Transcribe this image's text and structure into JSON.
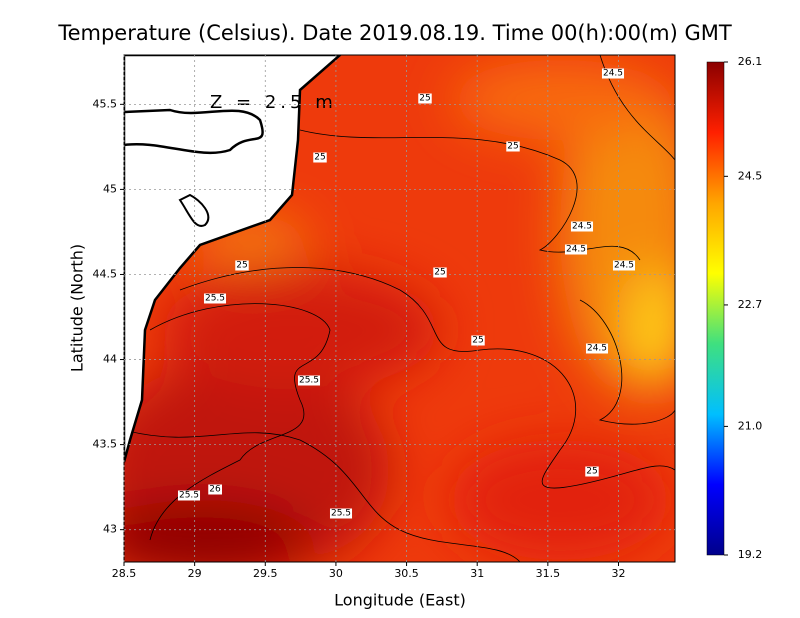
{
  "chart_data": {
    "type": "contour-map",
    "title": "Temperature (Celsius). Date 2019.08.19. Time 00(h):00(m) GMT",
    "annotation": "Z = 2.5 m",
    "x_label": "Longitude (East)",
    "y_label": "Latitude (North)",
    "xlim": [
      28.5,
      32.4
    ],
    "ylim": [
      42.81,
      45.79
    ],
    "xticks": [
      28.5,
      29,
      29.5,
      30,
      30.5,
      31,
      31.5,
      32
    ],
    "yticks": [
      43,
      43.5,
      44,
      44.5,
      45,
      45.5
    ],
    "grid": true,
    "clim": [
      19.2,
      26.1
    ],
    "cticks": [
      {
        "value": 19.2,
        "label": "19.2"
      },
      {
        "value": 21,
        "label": "21.0"
      },
      22.7,
      24.5,
      26.1
    ],
    "colormap": [
      "#00008b",
      "#0000ff",
      "#00bfff",
      "#3fe07f",
      "#ffff00",
      "#ffa500",
      "#ff2000",
      "#8b0000"
    ],
    "contour_labels": [
      24.5,
      25,
      25,
      25,
      24.5,
      24.5,
      25,
      24.5,
      25,
      25.5,
      25,
      24.5,
      25.5,
      25,
      25.5,
      26,
      25.5
    ]
  }
}
